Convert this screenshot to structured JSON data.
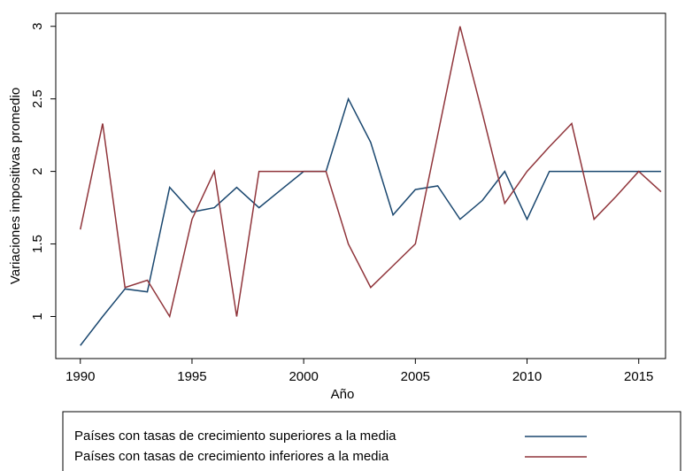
{
  "chart_data": {
    "type": "line",
    "x_label": "Año",
    "y_label": "Variaciones impositivas promedio",
    "x": [
      1990,
      1991,
      1992,
      1993,
      1994,
      1995,
      1996,
      1997,
      1998,
      1999,
      2000,
      2001,
      2002,
      2003,
      2004,
      2005,
      2006,
      2007,
      2008,
      2009,
      2010,
      2011,
      2012,
      2013,
      2014,
      2015,
      2016
    ],
    "series": [
      {
        "name": "Países con tasas de crecimiento superiores a la media",
        "color": "#1a476f",
        "values": [
          0.8,
          1.0,
          1.19,
          1.17,
          1.89,
          1.72,
          1.75,
          1.89,
          1.75,
          1.875,
          2.0,
          2.0,
          2.5,
          2.2,
          1.7,
          1.875,
          1.9,
          1.67,
          1.8,
          2.0,
          1.67,
          2.0,
          2.0,
          2.0,
          2.0,
          2.0,
          2.0
        ]
      },
      {
        "name": "Países con tasas de crecimiento inferiores a la media",
        "color": "#90353b",
        "values": [
          1.6,
          2.33,
          1.2,
          1.25,
          1.0,
          1.67,
          2.0,
          1.0,
          2.0,
          2.0,
          2.0,
          2.0,
          1.5,
          1.2,
          1.35,
          1.5,
          2.25,
          3.0,
          2.4,
          1.78,
          2.0,
          2.17,
          2.33,
          1.67,
          1.83,
          2.0,
          1.86
        ]
      }
    ],
    "xlim": [
      1988.9,
      2016.2
    ],
    "ylim": [
      0.71,
      3.09
    ],
    "xticks": [
      1990,
      1995,
      2000,
      2005,
      2010,
      2015
    ],
    "yticks": [
      1,
      1.5,
      2,
      2.5,
      3
    ],
    "grid": false,
    "legend": "bottom"
  }
}
